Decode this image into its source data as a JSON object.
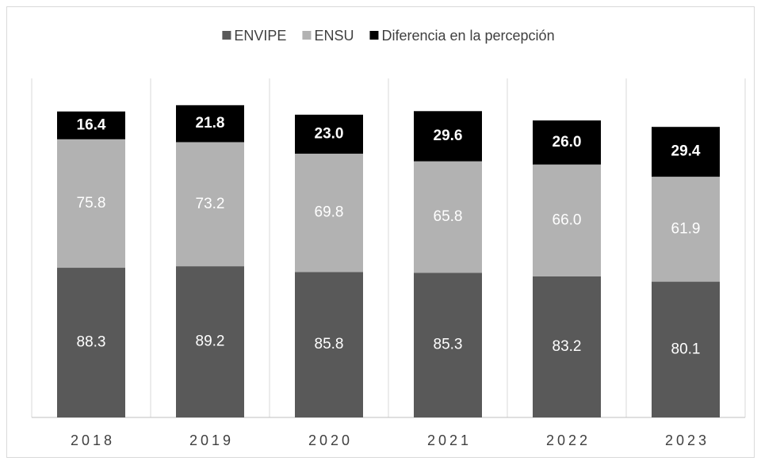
{
  "chart_data": {
    "type": "stacked_bar",
    "categories": [
      "2018",
      "2019",
      "2020",
      "2021",
      "2022",
      "2023"
    ],
    "series": [
      {
        "name": "ENVIPE",
        "color": "#595959",
        "values": [
          88.3,
          89.2,
          85.8,
          85.3,
          83.2,
          80.1
        ],
        "value_labels": [
          "88.3",
          "89.2",
          "85.8",
          "85.3",
          "83.2",
          "80.1"
        ]
      },
      {
        "name": "ENSU",
        "color": "#b2b2b2",
        "values": [
          75.8,
          73.2,
          69.8,
          65.8,
          66.0,
          61.9
        ],
        "value_labels": [
          "75.8",
          "73.2",
          "69.8",
          "65.8",
          "66.0",
          "61.9"
        ]
      },
      {
        "name": "Diferencia en la percepción",
        "color": "#000000",
        "values": [
          16.4,
          21.8,
          23.0,
          29.6,
          26.0,
          29.4
        ],
        "value_labels": [
          "16.4",
          "21.8",
          "23.0",
          "29.6",
          "26.0",
          "29.4"
        ]
      }
    ],
    "ylim": [
      0,
      200
    ],
    "legend": "top"
  }
}
